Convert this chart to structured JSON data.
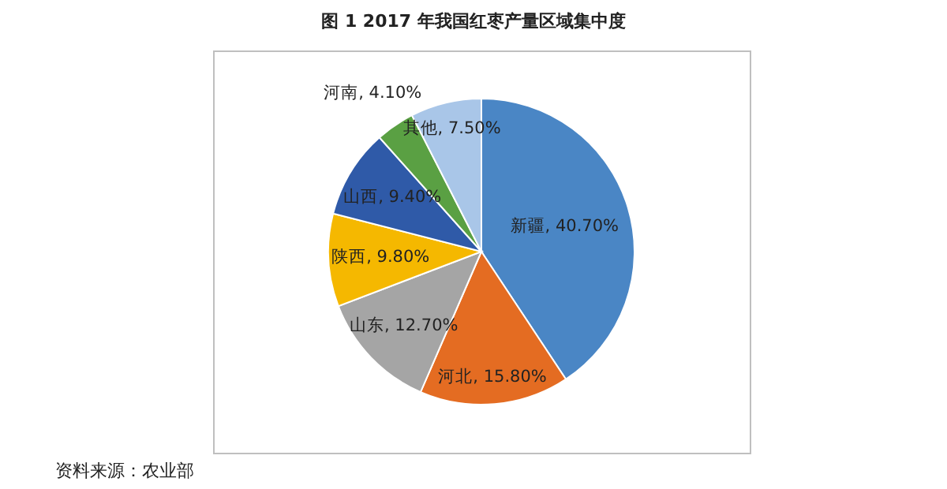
{
  "chart_data": {
    "type": "pie",
    "title": "图 1 2017 年我国红枣产量区域集中度",
    "categories": [
      "新疆",
      "河北",
      "山东",
      "陕西",
      "山西",
      "河南",
      "其他"
    ],
    "values": [
      40.7,
      15.8,
      12.7,
      9.8,
      9.4,
      4.1,
      7.5
    ],
    "value_labels": [
      "40.70%",
      "15.80%",
      "12.70%",
      "9.80%",
      "9.40%",
      "4.10%",
      "7.50%"
    ],
    "colors": [
      "#4a86c5",
      "#e46c22",
      "#a5a5a5",
      "#f5b800",
      "#2f5aa8",
      "#5aa043",
      "#a9c6e8"
    ],
    "annotations": [
      "资料来源：农业部"
    ],
    "legend": false
  }
}
